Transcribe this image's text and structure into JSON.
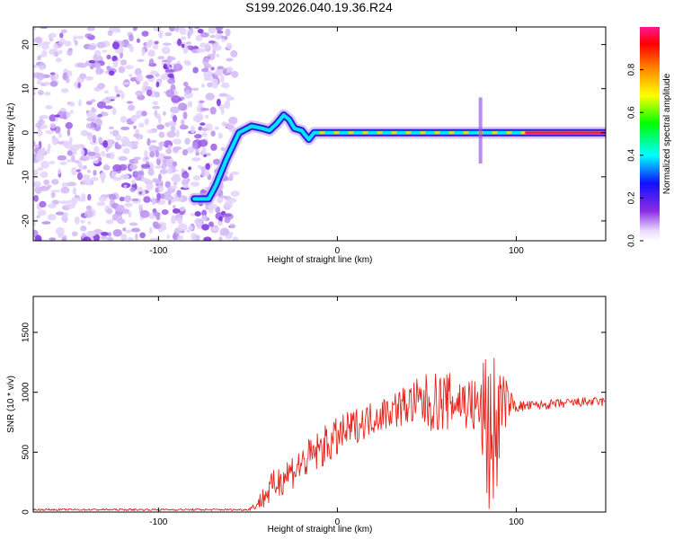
{
  "title": "S199.2026.040.19.36.R24",
  "colors": {
    "snr_line": "#e8231b",
    "ridge": "#2a1fd9",
    "noise": "#8a3ce6"
  },
  "chart_data": [
    {
      "type": "heatmap",
      "name": "spectrogram",
      "xlabel": "Height of straight line (km)",
      "ylabel": "Frequency (Hz)",
      "xlim": [
        -170,
        150
      ],
      "ylim": [
        -24.5,
        24
      ],
      "xticks": [
        -100,
        0,
        100
      ],
      "xtick_labels": [
        "-100",
        "0",
        "100"
      ],
      "yticks": [
        -20,
        -10,
        0,
        10,
        20
      ],
      "ytick_labels": [
        "-20",
        "-10",
        "0",
        "10",
        "20"
      ],
      "noise_region_x": [
        -170,
        -57
      ],
      "ridge": {
        "x": [
          -80,
          -72,
          -68,
          -62,
          -55,
          -48,
          -42,
          -38,
          -34,
          -30,
          -27,
          -24,
          -20,
          -16,
          -13,
          -10,
          0,
          20,
          40,
          60,
          75,
          80,
          85,
          90,
          100,
          110,
          150
        ],
        "y": [
          -15,
          -15,
          -12,
          -6,
          0,
          1.5,
          1,
          0.5,
          2,
          4,
          3,
          1,
          0.5,
          -1.5,
          0,
          0,
          0,
          0,
          0,
          0,
          0,
          0,
          0,
          0,
          0,
          0,
          0
        ]
      },
      "colorbar": {
        "label": "Normalized spectral amplitude",
        "range": [
          0,
          1
        ],
        "ticks": [
          0.0,
          0.2,
          0.4,
          0.6,
          0.8
        ],
        "tick_labels": [
          "0.0",
          "0.2",
          "0.4",
          "0.6",
          "0.8"
        ]
      }
    },
    {
      "type": "line",
      "name": "snr",
      "xlabel": "Height of straight line (km)",
      "ylabel": "SNR (10 * v/v)",
      "xlim": [
        -170,
        150
      ],
      "ylim": [
        0,
        1800
      ],
      "xticks": [
        -100,
        0,
        100
      ],
      "xtick_labels": [
        "-100",
        "0",
        "100"
      ],
      "yticks": [
        0,
        500,
        1000,
        1500
      ],
      "ytick_labels": [
        "0",
        "500",
        "1000",
        "1500"
      ],
      "envelope": {
        "x": [
          -170,
          -50,
          -45,
          -40,
          -30,
          -20,
          -10,
          0,
          10,
          20,
          30,
          40,
          50,
          60,
          70,
          80,
          84,
          88,
          92,
          96,
          100,
          110,
          120,
          130,
          140,
          150
        ],
        "mean": [
          20,
          20,
          60,
          150,
          300,
          400,
          520,
          620,
          720,
          790,
          850,
          900,
          910,
          920,
          930,
          850,
          700,
          650,
          900,
          920,
          880,
          890,
          900,
          910,
          920,
          920
        ],
        "amplitude": [
          8,
          8,
          40,
          120,
          150,
          160,
          170,
          170,
          150,
          140,
          150,
          180,
          250,
          250,
          220,
          280,
          800,
          700,
          300,
          120,
          50,
          40,
          40,
          40,
          40,
          40
        ]
      }
    }
  ]
}
